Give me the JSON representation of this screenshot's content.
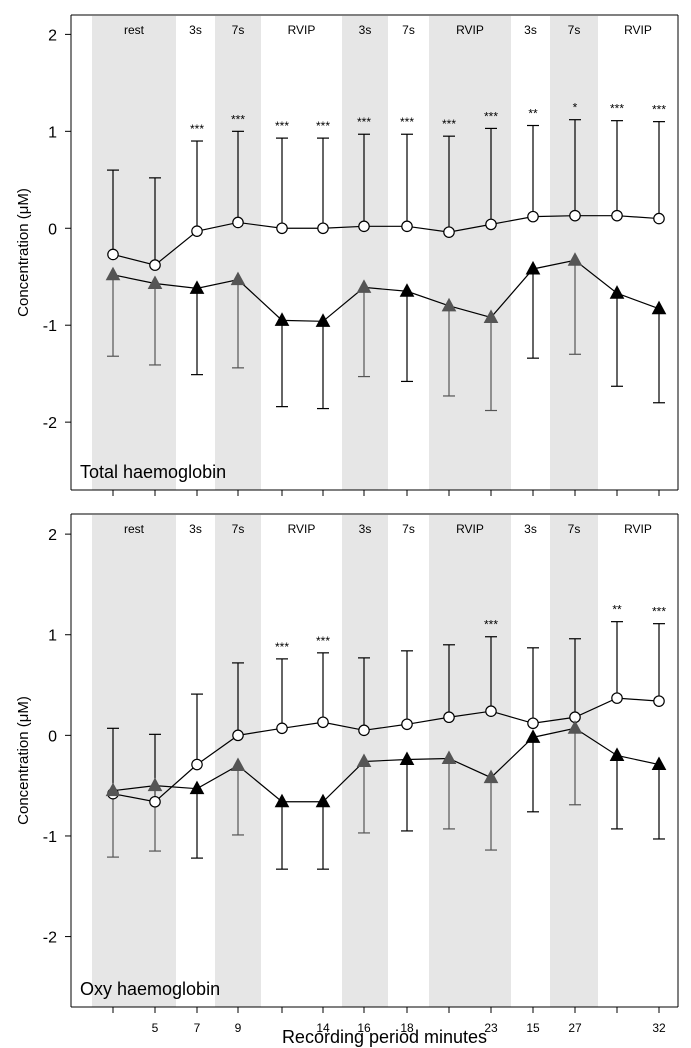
{
  "chart_data": [
    {
      "type": "line",
      "title": "",
      "panel_label": "Total haemoglobin",
      "ylabel": "Concentration (μM)",
      "xlabel": "",
      "ylim": [
        -2.7,
        2.2
      ],
      "y_ticks": [
        2,
        1,
        0,
        -1,
        -2
      ],
      "y_tick_labels": [
        "2",
        "1",
        "0",
        "-1",
        "-2"
      ],
      "x_tick_labels": [
        "",
        "",
        "",
        "",
        "",
        "",
        "",
        "",
        "",
        "",
        "",
        "",
        "",
        ""
      ],
      "phases": [
        {
          "label": "rest",
          "shaded": true
        },
        {
          "label": "3s",
          "shaded": false
        },
        {
          "label": "7s",
          "shaded": true
        },
        {
          "label": "RVIP",
          "shaded": false
        },
        {
          "label": "3s",
          "shaded": true
        },
        {
          "label": "7s",
          "shaded": false
        },
        {
          "label": "RVIP",
          "shaded": true
        },
        {
          "label": "3s",
          "shaded": false
        },
        {
          "label": "7s",
          "shaded": true
        },
        {
          "label": "RVIP",
          "shaded": false
        }
      ],
      "significance": [
        "",
        "",
        "***",
        "***",
        "***",
        "***",
        "***",
        "***",
        "***",
        "***",
        "**",
        "*",
        "***",
        "***"
      ],
      "series": [
        {
          "marker": "open-circle",
          "values": [
            -0.27,
            -0.38,
            -0.03,
            0.06,
            0.0,
            0.0,
            0.02,
            0.02,
            -0.04,
            0.04,
            0.12,
            0.13,
            0.13,
            0.1
          ],
          "error": [
            0.87,
            0.9,
            0.93,
            0.94,
            0.93,
            0.93,
            0.95,
            0.95,
            0.99,
            0.99,
            0.94,
            0.99,
            0.98,
            1.0
          ]
        },
        {
          "marker": "filled-triangle",
          "values": [
            -0.48,
            -0.57,
            -0.62,
            -0.53,
            -0.95,
            -0.96,
            -0.61,
            -0.65,
            -0.8,
            -0.92,
            -0.42,
            -0.33,
            -0.67,
            -0.83
          ],
          "error": [
            0.84,
            0.84,
            0.89,
            0.91,
            0.89,
            0.9,
            0.92,
            0.93,
            0.93,
            0.96,
            0.92,
            0.97,
            0.96,
            0.97
          ]
        }
      ]
    },
    {
      "type": "line",
      "title": "",
      "panel_label": "Oxy haemoglobin",
      "ylabel": "Concentration (μM)",
      "xlabel": "Recording period minutes",
      "ylim": [
        -2.7,
        2.2
      ],
      "y_ticks": [
        2,
        1,
        0,
        -1,
        -2
      ],
      "y_tick_labels": [
        "2",
        "1",
        "0",
        "-1",
        "-2"
      ],
      "x_tick_labels": [
        "",
        "5",
        "7",
        "9",
        "",
        "14",
        "16",
        "18",
        "",
        "23",
        "15",
        "27",
        "",
        "32"
      ],
      "phases": [
        {
          "label": "rest",
          "shaded": true
        },
        {
          "label": "3s",
          "shaded": false
        },
        {
          "label": "7s",
          "shaded": true
        },
        {
          "label": "RVIP",
          "shaded": false
        },
        {
          "label": "3s",
          "shaded": true
        },
        {
          "label": "7s",
          "shaded": false
        },
        {
          "label": "RVIP",
          "shaded": true
        },
        {
          "label": "3s",
          "shaded": false
        },
        {
          "label": "7s",
          "shaded": true
        },
        {
          "label": "RVIP",
          "shaded": false
        }
      ],
      "significance": [
        "",
        "",
        "",
        "",
        "***",
        "***",
        "",
        "",
        "",
        "***",
        "",
        "",
        "**",
        "***"
      ],
      "series": [
        {
          "marker": "open-circle",
          "values": [
            -0.58,
            -0.66,
            -0.29,
            0.0,
            0.07,
            0.13,
            0.05,
            0.11,
            0.18,
            0.24,
            0.12,
            0.18,
            0.37,
            0.34
          ],
          "error": [
            0.65,
            0.67,
            0.7,
            0.72,
            0.69,
            0.69,
            0.72,
            0.73,
            0.72,
            0.74,
            0.75,
            0.78,
            0.76,
            0.77
          ]
        },
        {
          "marker": "filled-triangle",
          "values": [
            -0.55,
            -0.5,
            -0.53,
            -0.3,
            -0.66,
            -0.66,
            -0.26,
            -0.24,
            -0.23,
            -0.42,
            -0.02,
            0.07,
            -0.2,
            -0.29
          ],
          "error": [
            0.66,
            0.65,
            0.69,
            0.69,
            0.67,
            0.67,
            0.71,
            0.71,
            0.7,
            0.72,
            0.74,
            0.76,
            0.73,
            0.74
          ]
        }
      ]
    }
  ]
}
